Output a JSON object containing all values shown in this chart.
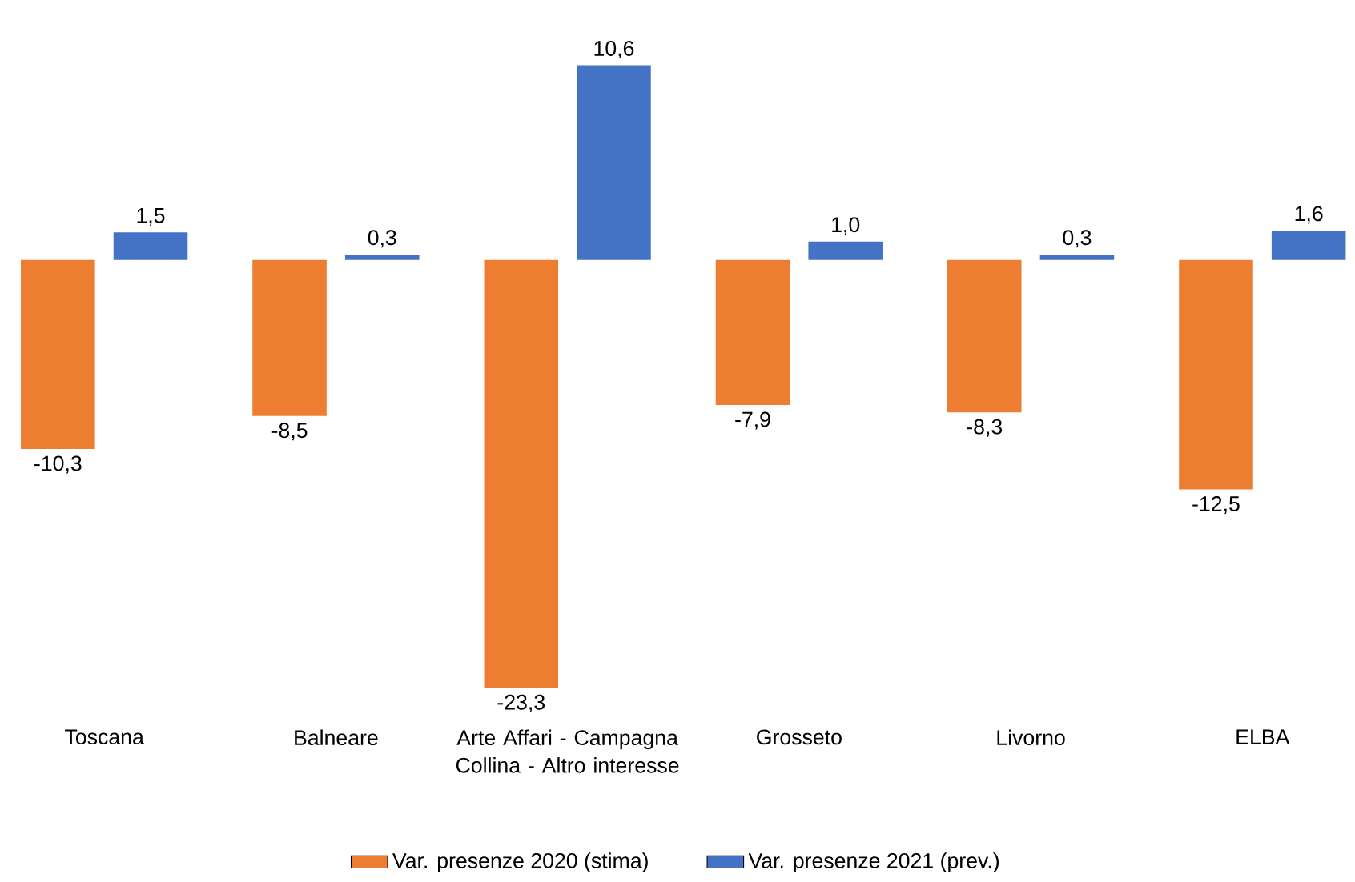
{
  "chart_data": {
    "type": "bar",
    "categories": [
      "Toscana",
      "Balneare",
      "Arte Affari - Campagna Collina - Altro interesse",
      "Grosseto",
      "Livorno",
      "ELBA"
    ],
    "series": [
      {
        "name": "Var. presenze 2020 (stima)",
        "color": "#ed7d31",
        "values": [
          -10.3,
          -8.5,
          -23.3,
          -7.9,
          -8.3,
          -12.5
        ],
        "value_labels": [
          "-10,3",
          "-8,5",
          "-23,3",
          "-7,9",
          "-8,3",
          "-12,5"
        ]
      },
      {
        "name": "Var. presenze 2021 (prev.)",
        "color": "#4472c4",
        "values": [
          1.5,
          0.3,
          10.6,
          1.0,
          0.3,
          1.6
        ],
        "value_labels": [
          "1,5",
          "0,3",
          "10,6",
          "1,0",
          "0,3",
          "1,6"
        ]
      }
    ],
    "legend": "bottom",
    "grid": false
  }
}
